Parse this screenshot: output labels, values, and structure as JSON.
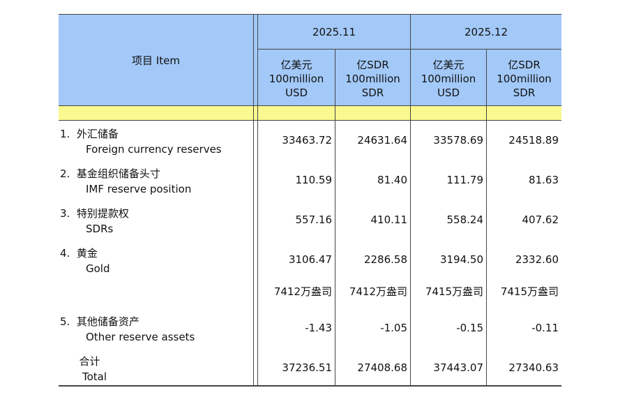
{
  "header": {
    "item_label": "项目  Item",
    "periods": [
      "2025.11",
      "2025.12"
    ],
    "units": [
      {
        "cn": "亿美元",
        "en1": "100million",
        "en2": "USD"
      },
      {
        "cn": "亿SDR",
        "en1": "100million",
        "en2": "SDR"
      },
      {
        "cn": "亿美元",
        "en1": "100million",
        "en2": "USD"
      },
      {
        "cn": "亿SDR",
        "en1": "100million",
        "en2": "SDR"
      }
    ]
  },
  "rows": [
    {
      "no": "1.",
      "cn": "外汇储备",
      "en": "Foreign currency reserves",
      "values": [
        "33463.72",
        "24631.64",
        "33578.69",
        "24518.89"
      ]
    },
    {
      "no": "2.",
      "cn": "基金组织储备头寸",
      "en": "IMF reserve position",
      "values": [
        "110.59",
        "81.40",
        "111.79",
        "81.63"
      ]
    },
    {
      "no": "3.",
      "cn": "特别提款权",
      "en": "SDRs",
      "values": [
        "557.16",
        "410.11",
        "558.24",
        "407.62"
      ]
    },
    {
      "no": "4.",
      "cn": "黄金",
      "en": "Gold",
      "values": [
        "3106.47",
        "2286.58",
        "3194.50",
        "2332.60"
      ]
    },
    {
      "no": "",
      "cn": "",
      "en": "",
      "values": [
        "7412万盎司",
        "7412万盎司",
        "7415万盎司",
        "7415万盎司"
      ]
    },
    {
      "no": "5.",
      "cn": "其他储备资产",
      "en": "Other reserve assets",
      "values": [
        "-1.43",
        "-1.05",
        "-0.15",
        "-0.11"
      ]
    },
    {
      "no": "",
      "cn": "合计",
      "en": "Total",
      "values": [
        "37236.51",
        "27408.68",
        "37443.07",
        "27340.63"
      ]
    }
  ],
  "colors": {
    "header_bg": "#a3c9f8",
    "band_bg": "#f9f98f"
  }
}
